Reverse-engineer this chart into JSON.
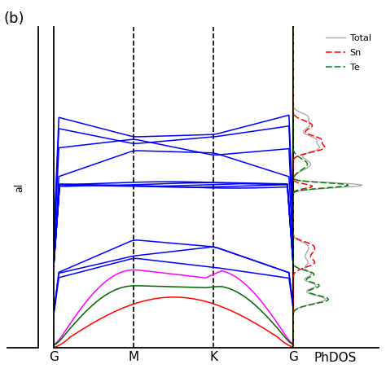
{
  "title": "(b)",
  "xtick_labels": [
    "G",
    "M",
    "K",
    "G"
  ],
  "phdos_label": "PhDOS",
  "ylim": [
    0,
    7
  ],
  "vline_positions": [
    0.333,
    0.667
  ],
  "num_kpoints": 300,
  "background_color": "white",
  "dispersion_color": "blue",
  "figure_size": [
    4.74,
    4.74
  ],
  "dpi": 100
}
